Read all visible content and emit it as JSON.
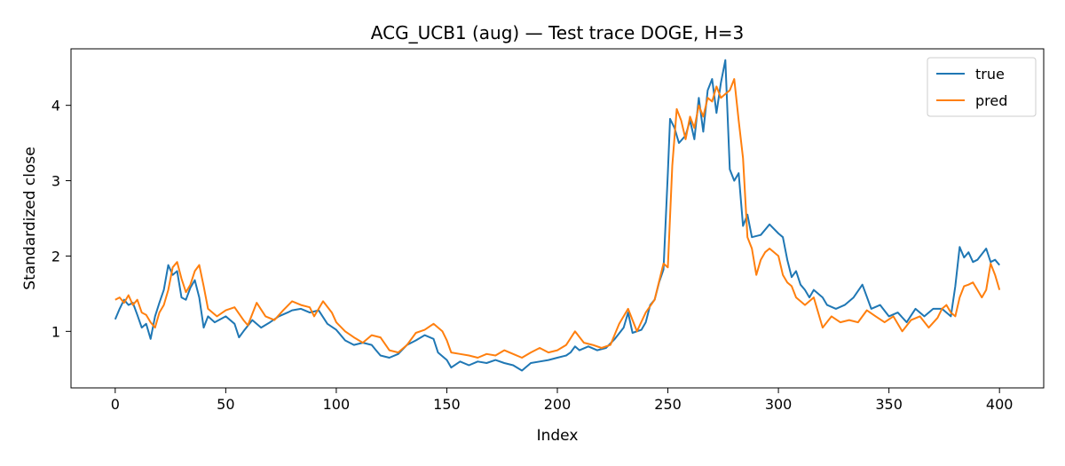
{
  "chart_data": {
    "type": "line",
    "title": "ACG_UCB1 (aug) — Test trace DOGE, H=3",
    "xlabel": "Index",
    "ylabel": "Standardized close",
    "xlim": [
      -20,
      420
    ],
    "ylim": [
      0.25,
      4.75
    ],
    "xticks": [
      0,
      50,
      100,
      150,
      200,
      250,
      300,
      350,
      400
    ],
    "yticks": [
      1,
      2,
      3,
      4
    ],
    "grid": false,
    "legend_position": "top-right",
    "series": [
      {
        "name": "true",
        "color": "#1f77b4",
        "points": [
          [
            0,
            1.16
          ],
          [
            2,
            1.3
          ],
          [
            4,
            1.42
          ],
          [
            6,
            1.35
          ],
          [
            8,
            1.38
          ],
          [
            10,
            1.22
          ],
          [
            12,
            1.05
          ],
          [
            14,
            1.1
          ],
          [
            16,
            0.9
          ],
          [
            18,
            1.2
          ],
          [
            20,
            1.38
          ],
          [
            22,
            1.55
          ],
          [
            24,
            1.88
          ],
          [
            26,
            1.75
          ],
          [
            28,
            1.8
          ],
          [
            30,
            1.45
          ],
          [
            32,
            1.42
          ],
          [
            34,
            1.58
          ],
          [
            36,
            1.68
          ],
          [
            38,
            1.45
          ],
          [
            40,
            1.05
          ],
          [
            42,
            1.2
          ],
          [
            45,
            1.12
          ],
          [
            50,
            1.2
          ],
          [
            54,
            1.1
          ],
          [
            56,
            0.92
          ],
          [
            58,
            1.0
          ],
          [
            62,
            1.15
          ],
          [
            66,
            1.05
          ],
          [
            70,
            1.12
          ],
          [
            74,
            1.2
          ],
          [
            78,
            1.25
          ],
          [
            80,
            1.28
          ],
          [
            84,
            1.3
          ],
          [
            88,
            1.25
          ],
          [
            92,
            1.28
          ],
          [
            96,
            1.1
          ],
          [
            100,
            1.02
          ],
          [
            104,
            0.88
          ],
          [
            108,
            0.82
          ],
          [
            112,
            0.85
          ],
          [
            116,
            0.82
          ],
          [
            118,
            0.75
          ],
          [
            120,
            0.68
          ],
          [
            124,
            0.65
          ],
          [
            128,
            0.7
          ],
          [
            132,
            0.82
          ],
          [
            136,
            0.88
          ],
          [
            140,
            0.95
          ],
          [
            144,
            0.9
          ],
          [
            146,
            0.72
          ],
          [
            150,
            0.62
          ],
          [
            152,
            0.52
          ],
          [
            156,
            0.6
          ],
          [
            160,
            0.55
          ],
          [
            164,
            0.6
          ],
          [
            168,
            0.58
          ],
          [
            172,
            0.62
          ],
          [
            176,
            0.58
          ],
          [
            180,
            0.55
          ],
          [
            184,
            0.48
          ],
          [
            188,
            0.58
          ],
          [
            192,
            0.6
          ],
          [
            196,
            0.62
          ],
          [
            200,
            0.65
          ],
          [
            204,
            0.68
          ],
          [
            206,
            0.72
          ],
          [
            208,
            0.8
          ],
          [
            210,
            0.75
          ],
          [
            214,
            0.8
          ],
          [
            218,
            0.75
          ],
          [
            222,
            0.78
          ],
          [
            226,
            0.9
          ],
          [
            230,
            1.05
          ],
          [
            232,
            1.25
          ],
          [
            234,
            0.98
          ],
          [
            238,
            1.02
          ],
          [
            240,
            1.12
          ],
          [
            242,
            1.35
          ],
          [
            244,
            1.42
          ],
          [
            246,
            1.65
          ],
          [
            248,
            1.82
          ],
          [
            250,
            3.1
          ],
          [
            251,
            3.82
          ],
          [
            253,
            3.7
          ],
          [
            255,
            3.5
          ],
          [
            258,
            3.6
          ],
          [
            260,
            3.8
          ],
          [
            262,
            3.55
          ],
          [
            264,
            4.1
          ],
          [
            266,
            3.65
          ],
          [
            268,
            4.2
          ],
          [
            270,
            4.35
          ],
          [
            272,
            3.9
          ],
          [
            274,
            4.3
          ],
          [
            276,
            4.6
          ],
          [
            278,
            3.15
          ],
          [
            280,
            3.0
          ],
          [
            282,
            3.1
          ],
          [
            284,
            2.4
          ],
          [
            286,
            2.55
          ],
          [
            288,
            2.25
          ],
          [
            292,
            2.28
          ],
          [
            296,
            2.42
          ],
          [
            300,
            2.3
          ],
          [
            302,
            2.25
          ],
          [
            304,
            1.95
          ],
          [
            306,
            1.72
          ],
          [
            308,
            1.8
          ],
          [
            310,
            1.62
          ],
          [
            312,
            1.55
          ],
          [
            314,
            1.45
          ],
          [
            316,
            1.55
          ],
          [
            318,
            1.5
          ],
          [
            320,
            1.45
          ],
          [
            322,
            1.35
          ],
          [
            326,
            1.3
          ],
          [
            330,
            1.35
          ],
          [
            334,
            1.45
          ],
          [
            338,
            1.62
          ],
          [
            342,
            1.3
          ],
          [
            346,
            1.35
          ],
          [
            350,
            1.2
          ],
          [
            354,
            1.25
          ],
          [
            358,
            1.12
          ],
          [
            362,
            1.3
          ],
          [
            366,
            1.2
          ],
          [
            370,
            1.3
          ],
          [
            374,
            1.3
          ],
          [
            378,
            1.2
          ],
          [
            380,
            1.6
          ],
          [
            382,
            2.12
          ],
          [
            384,
            1.98
          ],
          [
            386,
            2.05
          ],
          [
            388,
            1.92
          ],
          [
            390,
            1.95
          ],
          [
            394,
            2.1
          ],
          [
            396,
            1.92
          ],
          [
            398,
            1.95
          ],
          [
            400,
            1.88
          ]
        ]
      },
      {
        "name": "pred",
        "color": "#ff7f0e",
        "points": [
          [
            0,
            1.42
          ],
          [
            2,
            1.45
          ],
          [
            4,
            1.38
          ],
          [
            6,
            1.48
          ],
          [
            8,
            1.35
          ],
          [
            10,
            1.42
          ],
          [
            12,
            1.25
          ],
          [
            14,
            1.22
          ],
          [
            16,
            1.12
          ],
          [
            18,
            1.05
          ],
          [
            20,
            1.25
          ],
          [
            22,
            1.35
          ],
          [
            24,
            1.55
          ],
          [
            26,
            1.85
          ],
          [
            28,
            1.92
          ],
          [
            30,
            1.7
          ],
          [
            32,
            1.52
          ],
          [
            34,
            1.62
          ],
          [
            36,
            1.8
          ],
          [
            38,
            1.88
          ],
          [
            40,
            1.6
          ],
          [
            42,
            1.3
          ],
          [
            46,
            1.2
          ],
          [
            50,
            1.28
          ],
          [
            54,
            1.32
          ],
          [
            58,
            1.15
          ],
          [
            60,
            1.08
          ],
          [
            64,
            1.38
          ],
          [
            68,
            1.2
          ],
          [
            72,
            1.15
          ],
          [
            76,
            1.28
          ],
          [
            80,
            1.4
          ],
          [
            84,
            1.35
          ],
          [
            88,
            1.32
          ],
          [
            90,
            1.2
          ],
          [
            94,
            1.4
          ],
          [
            98,
            1.25
          ],
          [
            100,
            1.12
          ],
          [
            104,
            1.0
          ],
          [
            108,
            0.92
          ],
          [
            112,
            0.85
          ],
          [
            116,
            0.95
          ],
          [
            120,
            0.92
          ],
          [
            124,
            0.75
          ],
          [
            128,
            0.72
          ],
          [
            132,
            0.82
          ],
          [
            136,
            0.98
          ],
          [
            140,
            1.02
          ],
          [
            144,
            1.1
          ],
          [
            148,
            1.0
          ],
          [
            150,
            0.88
          ],
          [
            152,
            0.72
          ],
          [
            156,
            0.7
          ],
          [
            160,
            0.68
          ],
          [
            164,
            0.65
          ],
          [
            168,
            0.7
          ],
          [
            172,
            0.68
          ],
          [
            176,
            0.75
          ],
          [
            180,
            0.7
          ],
          [
            184,
            0.65
          ],
          [
            188,
            0.72
          ],
          [
            192,
            0.78
          ],
          [
            196,
            0.72
          ],
          [
            200,
            0.75
          ],
          [
            204,
            0.82
          ],
          [
            208,
            1.0
          ],
          [
            212,
            0.85
          ],
          [
            216,
            0.82
          ],
          [
            220,
            0.78
          ],
          [
            224,
            0.82
          ],
          [
            228,
            1.1
          ],
          [
            232,
            1.3
          ],
          [
            236,
            1.0
          ],
          [
            240,
            1.25
          ],
          [
            244,
            1.42
          ],
          [
            248,
            1.9
          ],
          [
            250,
            1.85
          ],
          [
            252,
            3.2
          ],
          [
            254,
            3.95
          ],
          [
            256,
            3.8
          ],
          [
            258,
            3.55
          ],
          [
            260,
            3.85
          ],
          [
            262,
            3.7
          ],
          [
            264,
            4.0
          ],
          [
            266,
            3.85
          ],
          [
            268,
            4.1
          ],
          [
            270,
            4.05
          ],
          [
            272,
            4.25
          ],
          [
            274,
            4.1
          ],
          [
            276,
            4.15
          ],
          [
            278,
            4.2
          ],
          [
            280,
            4.35
          ],
          [
            282,
            3.8
          ],
          [
            284,
            3.3
          ],
          [
            286,
            2.25
          ],
          [
            288,
            2.1
          ],
          [
            290,
            1.75
          ],
          [
            292,
            1.95
          ],
          [
            294,
            2.05
          ],
          [
            296,
            2.1
          ],
          [
            300,
            2.0
          ],
          [
            302,
            1.75
          ],
          [
            304,
            1.65
          ],
          [
            306,
            1.6
          ],
          [
            308,
            1.45
          ],
          [
            312,
            1.35
          ],
          [
            316,
            1.45
          ],
          [
            318,
            1.25
          ],
          [
            320,
            1.05
          ],
          [
            324,
            1.2
          ],
          [
            328,
            1.12
          ],
          [
            332,
            1.15
          ],
          [
            336,
            1.12
          ],
          [
            340,
            1.28
          ],
          [
            344,
            1.2
          ],
          [
            348,
            1.12
          ],
          [
            352,
            1.2
          ],
          [
            356,
            1.0
          ],
          [
            360,
            1.15
          ],
          [
            364,
            1.2
          ],
          [
            368,
            1.05
          ],
          [
            372,
            1.18
          ],
          [
            374,
            1.3
          ],
          [
            376,
            1.35
          ],
          [
            378,
            1.25
          ],
          [
            380,
            1.2
          ],
          [
            382,
            1.45
          ],
          [
            384,
            1.6
          ],
          [
            386,
            1.62
          ],
          [
            388,
            1.65
          ],
          [
            390,
            1.55
          ],
          [
            392,
            1.45
          ],
          [
            394,
            1.55
          ],
          [
            396,
            1.9
          ],
          [
            398,
            1.75
          ],
          [
            400,
            1.55
          ]
        ]
      }
    ]
  }
}
